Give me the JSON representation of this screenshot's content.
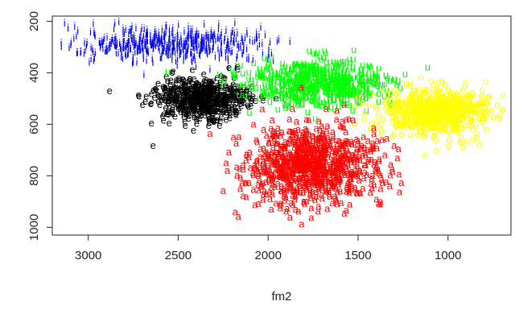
{
  "chart_data": {
    "type": "scatter",
    "title": "",
    "xlabel": "fm2",
    "ylabel": "",
    "xlim": [
      3200,
      650
    ],
    "ylim": [
      1030,
      180
    ],
    "x_ticks": [
      3000,
      2500,
      2000,
      1500,
      1000
    ],
    "x_tick_labels": [
      "3000",
      "2500",
      "2000",
      "1500",
      "1000"
    ],
    "y_ticks": [
      200,
      400,
      600,
      800,
      1000
    ],
    "y_tick_labels": [
      "200",
      "400",
      "600",
      "800",
      "1000"
    ],
    "grid": false,
    "legend": "none",
    "series": [
      {
        "marker": "i",
        "color": "#0000ff",
        "count": 520,
        "center": [
          2550,
          290
        ],
        "spread": [
          270,
          35
        ],
        "points": [
          [
            3150,
            300
          ],
          [
            3080,
            270
          ],
          [
            2200,
            320
          ],
          [
            1950,
            280
          ],
          [
            2750,
            360
          ],
          [
            2300,
            250
          ]
        ]
      },
      {
        "marker": "e",
        "color": "#000000",
        "count": 620,
        "center": [
          2370,
          500
        ],
        "spread": [
          130,
          40
        ],
        "points": [
          [
            2640,
            685
          ],
          [
            2560,
            560
          ],
          [
            2100,
            500
          ],
          [
            2620,
            470
          ],
          [
            2180,
            560
          ]
        ]
      },
      {
        "marker": "u",
        "color": "#00ff00",
        "count": 650,
        "center": [
          1720,
          440
        ],
        "spread": [
          190,
          45
        ],
        "points": [
          [
            1920,
            380
          ],
          [
            1480,
            430
          ],
          [
            1430,
            480
          ],
          [
            2050,
            500
          ],
          [
            1700,
            530
          ]
        ]
      },
      {
        "marker": "o",
        "color": "#ffff00",
        "count": 700,
        "center": [
          1080,
          550
        ],
        "spread": [
          150,
          45
        ],
        "points": [
          [
            900,
            440
          ],
          [
            1300,
            640
          ],
          [
            860,
            660
          ],
          [
            1150,
            420
          ],
          [
            1230,
            590
          ]
        ]
      },
      {
        "marker": "a",
        "color": "#ff0000",
        "count": 900,
        "center": [
          1750,
          760
        ],
        "spread": [
          180,
          75
        ],
        "points": [
          [
            2050,
            820
          ],
          [
            1760,
            965
          ],
          [
            1420,
            800
          ],
          [
            2250,
            860
          ],
          [
            1900,
            940
          ],
          [
            1620,
            900
          ],
          [
            1700,
            640
          ]
        ]
      }
    ]
  }
}
